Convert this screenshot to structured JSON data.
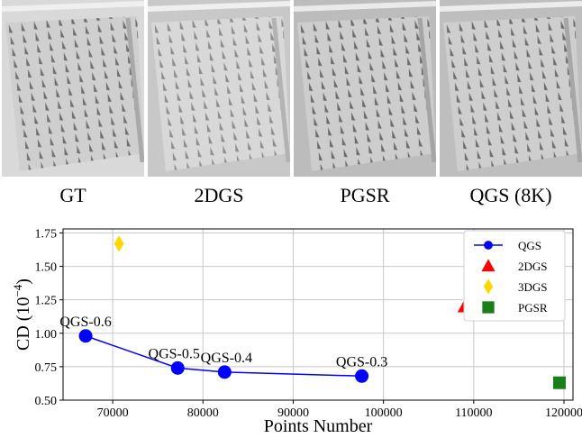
{
  "panels": [
    {
      "label": "GT",
      "tone": "#c9c9c9"
    },
    {
      "label": "2DGS",
      "tone": "#d4d4d4"
    },
    {
      "label": "PGSR",
      "tone": "#c6c6c6"
    },
    {
      "label": "QGS (8K)",
      "tone": "#c8c8c8"
    }
  ],
  "chart_data": {
    "type": "scatter",
    "xlabel": "Points Number",
    "ylabel": "CD (10",
    "ylabel_exp": "−4",
    "ylabel_close": ")",
    "xlim": [
      64500,
      121000
    ],
    "ylim": [
      0.5,
      1.78
    ],
    "xticks": [
      70000,
      80000,
      90000,
      100000,
      110000,
      120000
    ],
    "xtick_labels": [
      "70000",
      "80000",
      "90000",
      "100000",
      "110000",
      "120000"
    ],
    "yticks": [
      0.5,
      0.75,
      1.0,
      1.25,
      1.5,
      1.75
    ],
    "ytick_labels": [
      "0.50",
      "0.75",
      "1.00",
      "1.25",
      "1.50",
      "1.75"
    ],
    "grid": true,
    "legend_position": "top-right",
    "series": [
      {
        "name": "QGS",
        "marker": "circle-line",
        "color": "#0000ff",
        "x": [
          67000,
          77200,
          82400,
          97600
        ],
        "y": [
          0.98,
          0.74,
          0.71,
          0.68
        ],
        "point_labels": [
          "QGS-0.6",
          "QGS-0.5",
          "QGS-0.4",
          "QGS-0.3"
        ]
      },
      {
        "name": "2DGS",
        "marker": "triangle",
        "color": "#ff0000",
        "x": [
          109000
        ],
        "y": [
          1.2
        ]
      },
      {
        "name": "3DGS",
        "marker": "diamond",
        "color": "#ffd700",
        "x": [
          70700
        ],
        "y": [
          1.67
        ]
      },
      {
        "name": "PGSR",
        "marker": "square",
        "color": "#1a7f1a",
        "x": [
          119500
        ],
        "y": [
          0.63
        ]
      }
    ]
  }
}
